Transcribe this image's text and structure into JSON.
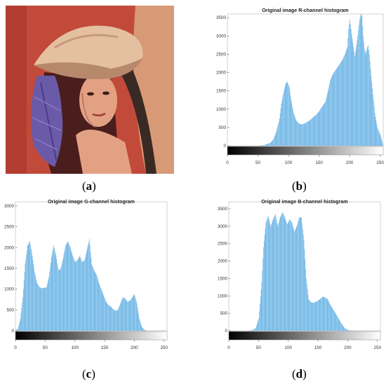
{
  "panels": [
    {
      "id": "a",
      "label": "a"
    },
    {
      "id": "b",
      "label": "b"
    },
    {
      "id": "c",
      "label": "c"
    },
    {
      "id": "d",
      "label": "d"
    }
  ],
  "photo": {
    "colors": {
      "background": "#c24a3a",
      "hat": "#e4c0a0",
      "hat_shadow": "#b7896c",
      "feather": "#6a5aa8",
      "hair": "#4a1e1c",
      "skin": "#e3a184",
      "skin_shadow": "#b96e5a",
      "right_panel": "#eec39a"
    }
  },
  "chart_data": [
    {
      "type": "area",
      "title": "Original image R-channel histogram",
      "xlabel": "",
      "ylabel": "",
      "xlim": [
        0,
        255
      ],
      "ylim": [
        0,
        3600
      ],
      "xticks": [
        0,
        50,
        100,
        150,
        200,
        250
      ],
      "yticks": [
        0,
        500,
        1000,
        1500,
        2000,
        2500,
        3000,
        3500
      ],
      "color": "#5faee3",
      "colorbar": "grayscale",
      "x": [
        30,
        40,
        50,
        60,
        70,
        75,
        80,
        85,
        88,
        92,
        95,
        98,
        101,
        104,
        108,
        112,
        116,
        120,
        125,
        130,
        135,
        140,
        145,
        150,
        155,
        160,
        165,
        168,
        172,
        176,
        180,
        184,
        188,
        192,
        196,
        198,
        200,
        203,
        206,
        208,
        210,
        213,
        216,
        218,
        220,
        222,
        224,
        226,
        228,
        230,
        232,
        235,
        238,
        241,
        245,
        250,
        255
      ],
      "values": [
        0,
        0,
        0,
        20,
        80,
        180,
        400,
        750,
        1150,
        1500,
        1700,
        1750,
        1600,
        1250,
        900,
        700,
        620,
        580,
        600,
        650,
        700,
        780,
        850,
        950,
        1080,
        1200,
        1550,
        1800,
        1950,
        2050,
        2150,
        2250,
        2350,
        2500,
        2700,
        3200,
        3450,
        3050,
        2700,
        2450,
        2650,
        3000,
        3450,
        3600,
        3550,
        3000,
        2650,
        2500,
        2650,
        2750,
        2500,
        1900,
        1400,
        900,
        500,
        300,
        0
      ]
    },
    {
      "type": "area",
      "title": "Original image G-channel histogram",
      "xlabel": "",
      "ylabel": "",
      "xlim": [
        0,
        255
      ],
      "ylim": [
        0,
        3100
      ],
      "xticks": [
        0,
        50,
        100,
        150,
        200,
        250
      ],
      "yticks": [
        0,
        500,
        1000,
        1500,
        2000,
        2500,
        3000
      ],
      "color": "#5faee3",
      "colorbar": "grayscale",
      "x": [
        0,
        4,
        8,
        12,
        16,
        20,
        24,
        28,
        32,
        36,
        40,
        44,
        48,
        52,
        56,
        60,
        64,
        68,
        72,
        76,
        80,
        84,
        88,
        92,
        96,
        100,
        104,
        108,
        112,
        116,
        120,
        124,
        128,
        132,
        136,
        140,
        144,
        148,
        152,
        156,
        160,
        164,
        168,
        172,
        176,
        180,
        184,
        188,
        192,
        196,
        200,
        204,
        208,
        212,
        216,
        220,
        226,
        230,
        255
      ],
      "values": [
        0,
        50,
        300,
        800,
        1600,
        2050,
        2150,
        1800,
        1400,
        1150,
        1050,
        1020,
        1030,
        1050,
        1300,
        1750,
        2050,
        1800,
        1450,
        1500,
        1750,
        2050,
        2150,
        2000,
        1800,
        1650,
        1700,
        1800,
        1650,
        1700,
        1950,
        2200,
        1600,
        1450,
        1350,
        1150,
        1000,
        850,
        700,
        620,
        580,
        520,
        480,
        500,
        650,
        800,
        780,
        700,
        720,
        800,
        880,
        650,
        300,
        100,
        30,
        0,
        0,
        0,
        0
      ]
    },
    {
      "type": "area",
      "title": "Original image B-channel histogram",
      "xlabel": "",
      "ylabel": "",
      "xlim": [
        0,
        255
      ],
      "ylim": [
        0,
        3700
      ],
      "xticks": [
        0,
        50,
        100,
        150,
        200,
        250
      ],
      "yticks": [
        0,
        500,
        1000,
        1500,
        2000,
        2500,
        3000,
        3500
      ],
      "color": "#5faee3",
      "colorbar": "grayscale",
      "x": [
        0,
        30,
        40,
        45,
        50,
        55,
        58,
        62,
        66,
        70,
        74,
        78,
        82,
        86,
        90,
        94,
        98,
        102,
        106,
        110,
        114,
        118,
        122,
        126,
        130,
        134,
        138,
        142,
        146,
        150,
        154,
        158,
        162,
        166,
        170,
        175,
        180,
        185,
        190,
        195,
        200,
        210,
        255
      ],
      "values": [
        0,
        0,
        20,
        80,
        350,
        1400,
        2400,
        3100,
        3300,
        3000,
        3200,
        3350,
        3000,
        3250,
        3400,
        3250,
        3050,
        3200,
        3100,
        2850,
        3000,
        3250,
        3250,
        2600,
        1500,
        900,
        820,
        800,
        830,
        870,
        920,
        980,
        950,
        900,
        760,
        620,
        480,
        330,
        180,
        70,
        20,
        0,
        0
      ]
    }
  ]
}
